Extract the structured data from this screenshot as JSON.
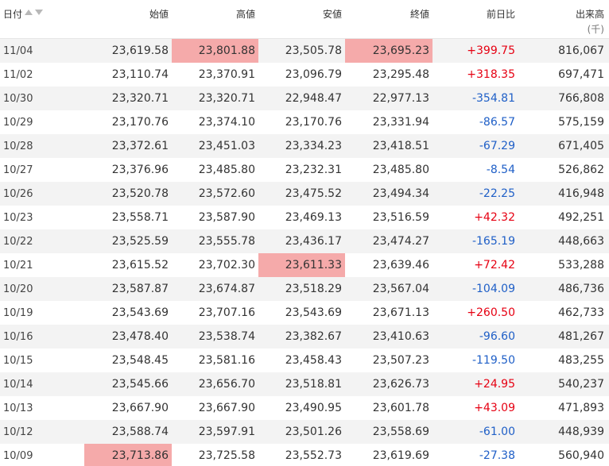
{
  "headers": {
    "date": "日付",
    "open": "始値",
    "high": "高値",
    "low": "安値",
    "close": "終値",
    "change": "前日比",
    "volume": "出来高",
    "volume_unit": "(千)"
  },
  "colors": {
    "positive": "#e60012",
    "negative": "#1f5fc7",
    "highlight": "#f5aaaa"
  },
  "rows": [
    {
      "date": "11/04",
      "open": "23,619.58",
      "high": "23,801.88",
      "low": "23,505.78",
      "close": "23,695.23",
      "change": "+399.75",
      "volume": "816,067",
      "highlight": [
        "high",
        "close"
      ]
    },
    {
      "date": "11/02",
      "open": "23,110.74",
      "high": "23,370.91",
      "low": "23,096.79",
      "close": "23,295.48",
      "change": "+318.35",
      "volume": "697,471",
      "highlight": []
    },
    {
      "date": "10/30",
      "open": "23,320.71",
      "high": "23,320.71",
      "low": "22,948.47",
      "close": "22,977.13",
      "change": "-354.81",
      "volume": "766,808",
      "highlight": []
    },
    {
      "date": "10/29",
      "open": "23,170.76",
      "high": "23,374.10",
      "low": "23,170.76",
      "close": "23,331.94",
      "change": "-86.57",
      "volume": "575,159",
      "highlight": []
    },
    {
      "date": "10/28",
      "open": "23,372.61",
      "high": "23,451.03",
      "low": "23,334.23",
      "close": "23,418.51",
      "change": "-67.29",
      "volume": "671,405",
      "highlight": []
    },
    {
      "date": "10/27",
      "open": "23,376.96",
      "high": "23,485.80",
      "low": "23,232.31",
      "close": "23,485.80",
      "change": "-8.54",
      "volume": "526,862",
      "highlight": []
    },
    {
      "date": "10/26",
      "open": "23,520.78",
      "high": "23,572.60",
      "low": "23,475.52",
      "close": "23,494.34",
      "change": "-22.25",
      "volume": "416,948",
      "highlight": []
    },
    {
      "date": "10/23",
      "open": "23,558.71",
      "high": "23,587.90",
      "low": "23,469.13",
      "close": "23,516.59",
      "change": "+42.32",
      "volume": "492,251",
      "highlight": []
    },
    {
      "date": "10/22",
      "open": "23,525.59",
      "high": "23,555.78",
      "low": "23,436.17",
      "close": "23,474.27",
      "change": "-165.19",
      "volume": "448,663",
      "highlight": []
    },
    {
      "date": "10/21",
      "open": "23,615.52",
      "high": "23,702.30",
      "low": "23,611.33",
      "close": "23,639.46",
      "change": "+72.42",
      "volume": "533,288",
      "highlight": [
        "low"
      ]
    },
    {
      "date": "10/20",
      "open": "23,587.87",
      "high": "23,674.87",
      "low": "23,518.29",
      "close": "23,567.04",
      "change": "-104.09",
      "volume": "486,736",
      "highlight": []
    },
    {
      "date": "10/19",
      "open": "23,543.69",
      "high": "23,707.16",
      "low": "23,543.69",
      "close": "23,671.13",
      "change": "+260.50",
      "volume": "462,733",
      "highlight": []
    },
    {
      "date": "10/16",
      "open": "23,478.40",
      "high": "23,538.74",
      "low": "23,382.67",
      "close": "23,410.63",
      "change": "-96.60",
      "volume": "481,267",
      "highlight": []
    },
    {
      "date": "10/15",
      "open": "23,548.45",
      "high": "23,581.16",
      "low": "23,458.43",
      "close": "23,507.23",
      "change": "-119.50",
      "volume": "483,255",
      "highlight": []
    },
    {
      "date": "10/14",
      "open": "23,545.66",
      "high": "23,656.70",
      "low": "23,518.81",
      "close": "23,626.73",
      "change": "+24.95",
      "volume": "540,237",
      "highlight": []
    },
    {
      "date": "10/13",
      "open": "23,667.90",
      "high": "23,667.90",
      "low": "23,490.95",
      "close": "23,601.78",
      "change": "+43.09",
      "volume": "471,893",
      "highlight": []
    },
    {
      "date": "10/12",
      "open": "23,588.74",
      "high": "23,597.91",
      "low": "23,501.26",
      "close": "23,558.69",
      "change": "-61.00",
      "volume": "448,939",
      "highlight": []
    },
    {
      "date": "10/09",
      "open": "23,713.86",
      "high": "23,725.58",
      "low": "23,552.73",
      "close": "23,619.69",
      "change": "-27.38",
      "volume": "560,940",
      "highlight": [
        "open"
      ]
    }
  ]
}
